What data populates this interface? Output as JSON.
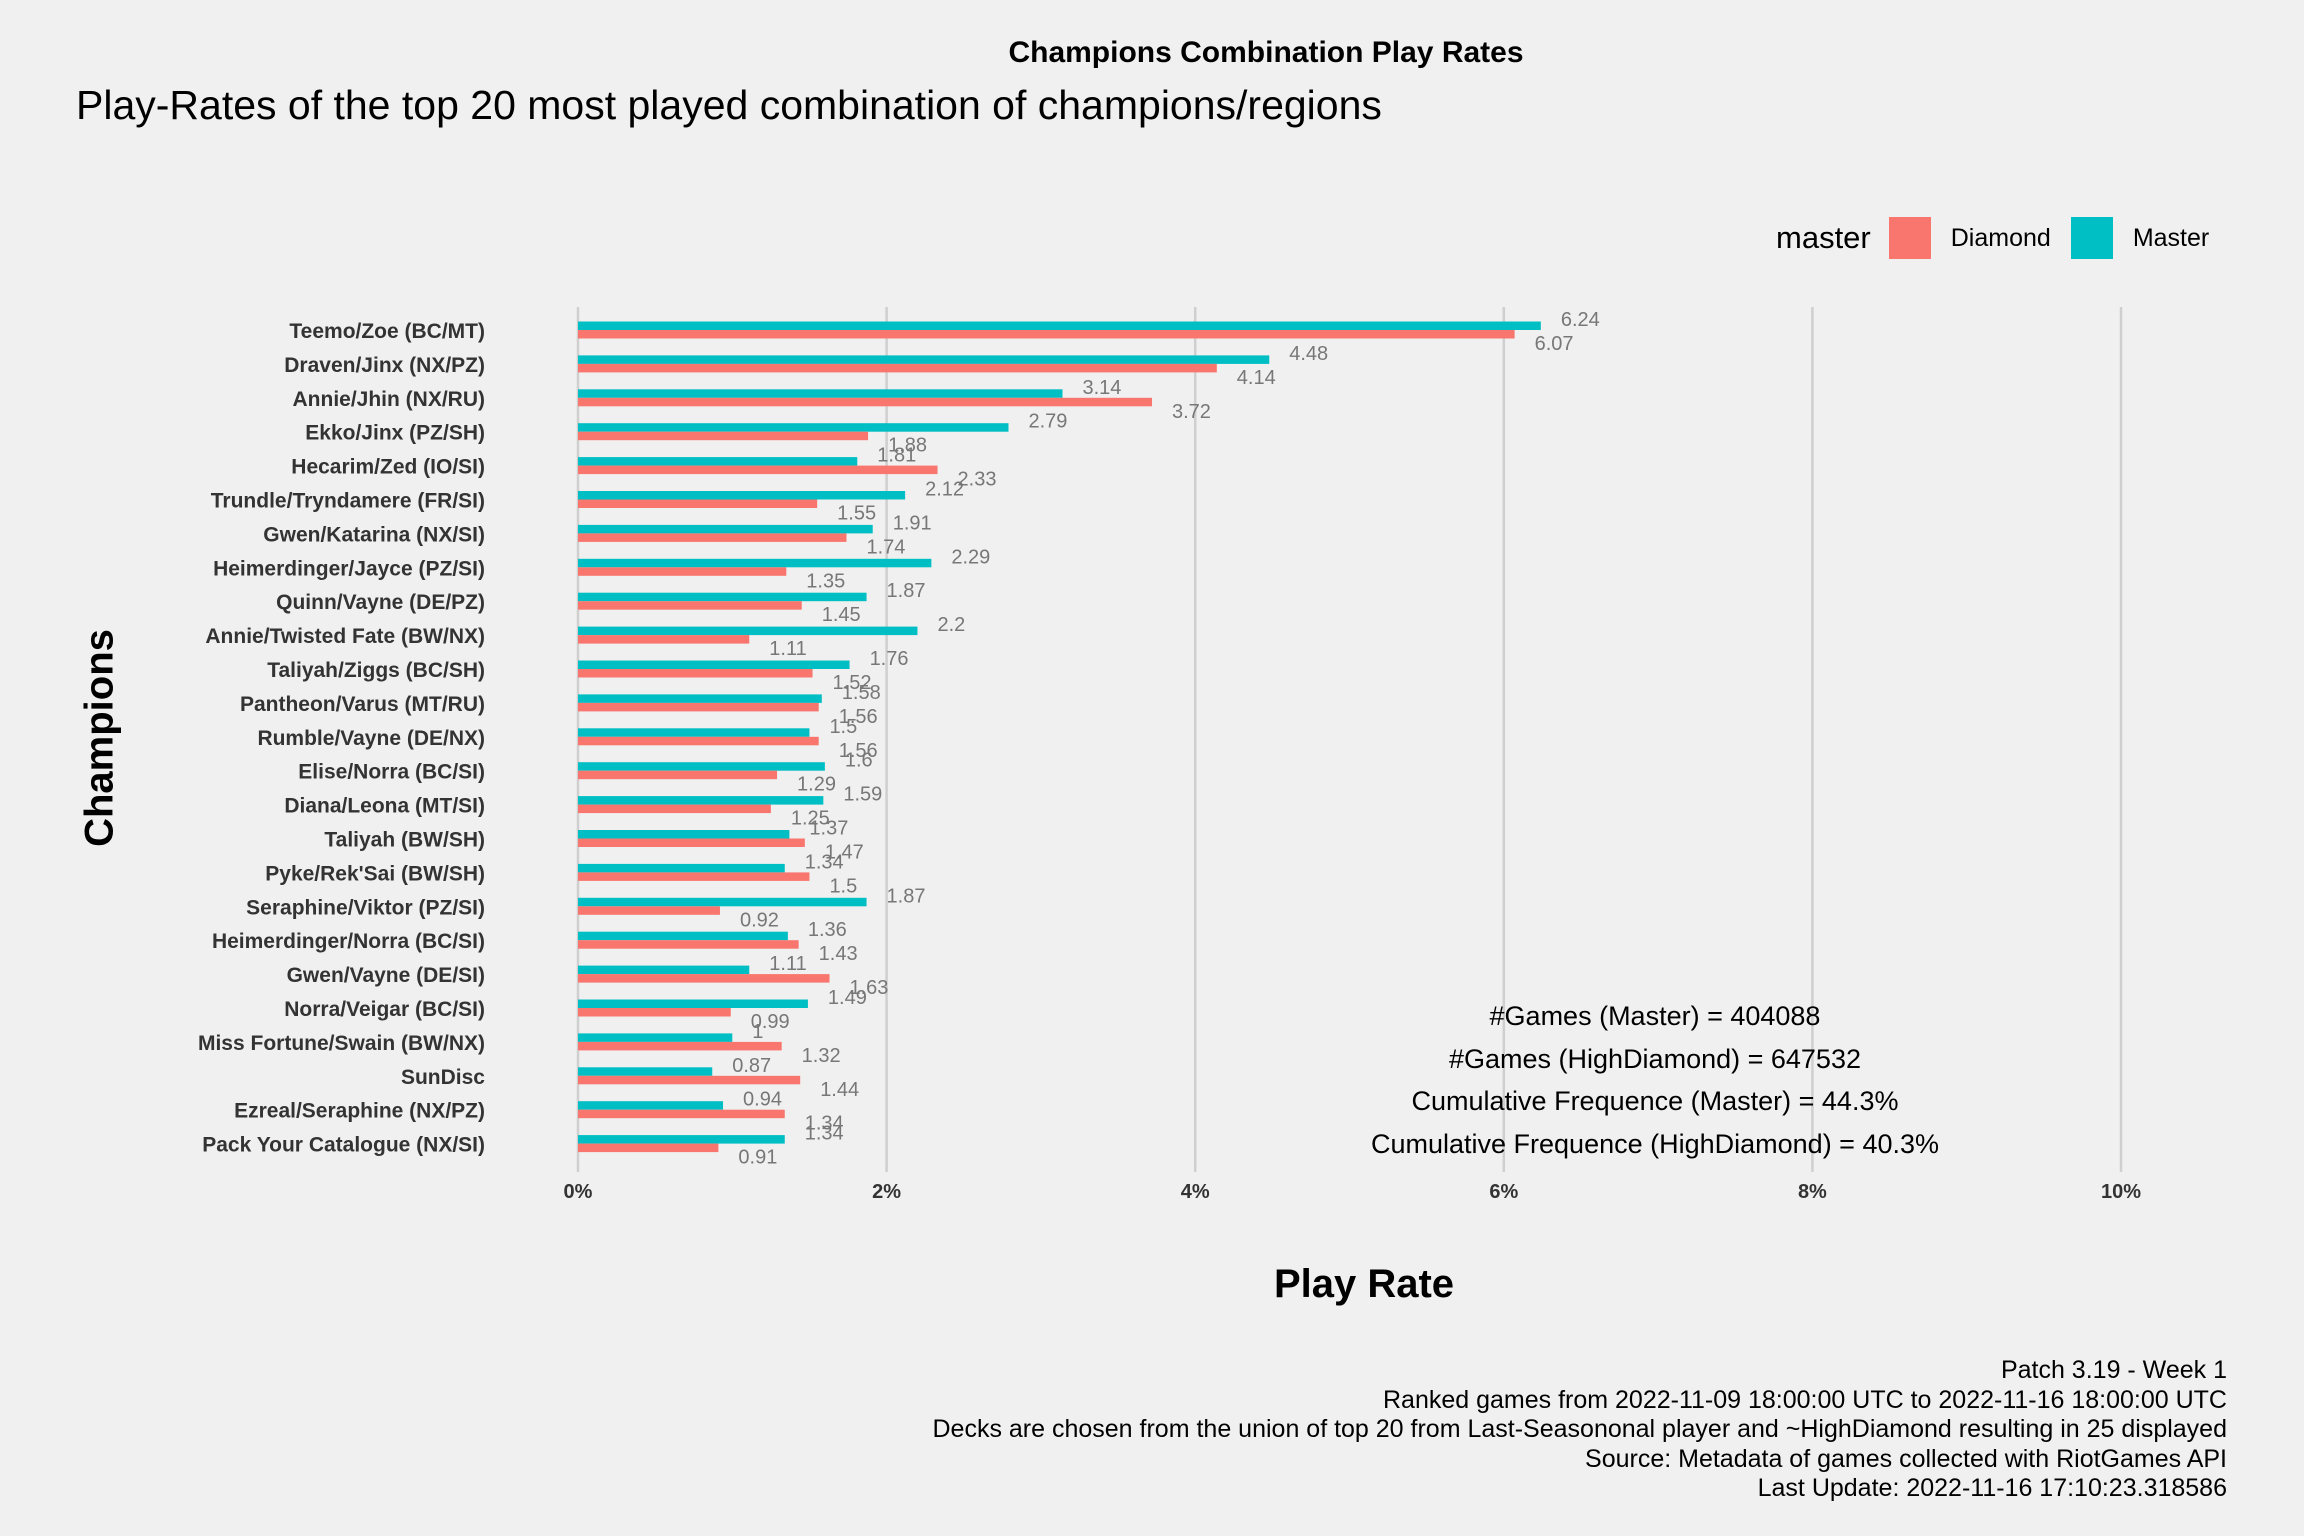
{
  "title": "Champions Combination Play Rates",
  "subtitle": "Play-Rates of the top 20 most played combination of champions/regions",
  "legend": {
    "title": "master",
    "items": [
      {
        "label": "Diamond",
        "color": "#f8766d"
      },
      {
        "label": "Master",
        "color": "#00bfc4"
      }
    ]
  },
  "stats": [
    "#Games (Master) = 404088",
    "#Games (HighDiamond) = 647532",
    "Cumulative Frequence (Master) = 44.3%",
    "Cumulative Frequence (HighDiamond) = 40.3%"
  ],
  "caption": [
    "Patch 3.19 - Week 1",
    "Ranked games from 2022-11-09 18:00:00 UTC to 2022-11-16 18:00:00 UTC",
    "Decks are chosen from the union of top 20 from Last-Seasononal player and ~HighDiamond resulting in 25 displayed",
    "Source: Metadata of games collected with RiotGames API",
    "Last Update: 2022-11-16 17:10:23.318586"
  ],
  "chart_data": {
    "type": "bar",
    "orientation": "horizontal",
    "xlabel": "Play Rate",
    "ylabel": "Champions",
    "xlim": [
      0,
      10
    ],
    "xticks": [
      "0%",
      "2%",
      "4%",
      "6%",
      "8%",
      "10%"
    ],
    "grid": "vertical",
    "legend_position": "top-right",
    "categories": [
      "Teemo/Zoe (BC/MT)",
      "Draven/Jinx (NX/PZ)",
      "Annie/Jhin (NX/RU)",
      "Ekko/Jinx (PZ/SH)",
      "Hecarim/Zed (IO/SI)",
      "Trundle/Tryndamere (FR/SI)",
      "Gwen/Katarina (NX/SI)",
      "Heimerdinger/Jayce (PZ/SI)",
      "Quinn/Vayne (DE/PZ)",
      "Annie/Twisted Fate (BW/NX)",
      "Taliyah/Ziggs (BC/SH)",
      "Pantheon/Varus (MT/RU)",
      "Rumble/Vayne (DE/NX)",
      "Elise/Norra (BC/SI)",
      "Diana/Leona (MT/SI)",
      "Taliyah (BW/SH)",
      "Pyke/Rek'Sai (BW/SH)",
      "Seraphine/Viktor (PZ/SI)",
      "Heimerdinger/Norra (BC/SI)",
      "Gwen/Vayne (DE/SI)",
      "Norra/Veigar (BC/SI)",
      "Miss Fortune/Swain (BW/NX)",
      "SunDisc",
      "Ezreal/Seraphine (NX/PZ)",
      "Pack Your Catalogue (NX/SI)"
    ],
    "series": [
      {
        "name": "Master",
        "color": "#00bfc4",
        "values": [
          6.24,
          4.48,
          3.14,
          2.79,
          1.81,
          2.12,
          1.91,
          2.29,
          1.87,
          2.2,
          1.76,
          1.58,
          1.5,
          1.6,
          1.59,
          1.37,
          1.34,
          1.87,
          1.36,
          1.11,
          1.49,
          1,
          0.87,
          0.94,
          1.34
        ]
      },
      {
        "name": "Diamond",
        "color": "#f8766d",
        "values": [
          6.07,
          4.14,
          3.72,
          1.88,
          2.33,
          1.55,
          1.74,
          1.35,
          1.45,
          1.11,
          1.52,
          1.56,
          1.56,
          1.29,
          1.25,
          1.47,
          1.5,
          0.92,
          1.43,
          1.63,
          0.99,
          1.32,
          1.44,
          1.34,
          0.91
        ]
      }
    ]
  }
}
